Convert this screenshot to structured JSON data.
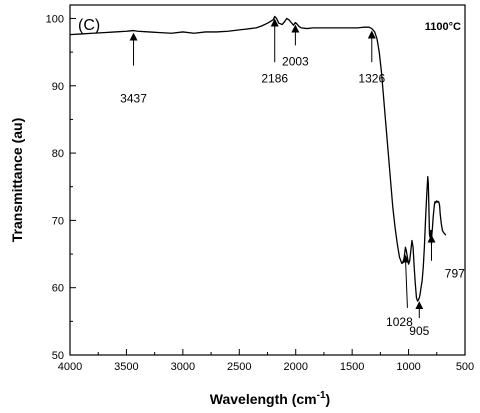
{
  "chart_data": {
    "type": "line",
    "panel_label": "(C)",
    "corner_label": "1100°C",
    "xlabel_main": "Wavelength (cm",
    "xlabel_sup": "-1",
    "xlabel_end": ")",
    "ylabel": "Transmittance (au)",
    "xlim": [
      4000,
      500
    ],
    "ylim": [
      50,
      102
    ],
    "x_ticks": [
      4000,
      3500,
      3000,
      2500,
      2000,
      1500,
      1000,
      500
    ],
    "y_ticks": [
      50,
      60,
      70,
      80,
      90,
      100
    ],
    "grid": false,
    "series": [
      {
        "x": [
          4000,
          3900,
          3800,
          3700,
          3600,
          3500,
          3437,
          3400,
          3300,
          3200,
          3100,
          3000,
          2900,
          2800,
          2700,
          2600,
          2500,
          2450,
          2400,
          2350,
          2300,
          2250,
          2200,
          2186,
          2170,
          2150,
          2120,
          2100,
          2080,
          2060,
          2040,
          2020,
          2003,
          1990,
          1970,
          1950,
          1900,
          1850,
          1800,
          1750,
          1700,
          1650,
          1600,
          1550,
          1500,
          1450,
          1400,
          1350,
          1326,
          1300,
          1280,
          1260,
          1240,
          1220,
          1200,
          1180,
          1160,
          1140,
          1120,
          1100,
          1080,
          1060,
          1045,
          1035,
          1028,
          1020,
          1010,
          1000,
          990,
          980,
          970,
          960,
          950,
          940,
          930,
          920,
          910,
          905,
          898,
          890,
          880,
          870,
          860,
          850,
          840,
          830,
          825,
          820,
          815,
          810,
          805,
          800,
          797,
          793,
          788,
          782,
          776,
          770,
          765,
          760,
          755,
          750,
          745,
          740,
          735,
          730,
          725,
          720,
          710,
          700,
          690,
          680,
          670
        ],
        "y": [
          97.6,
          97.7,
          97.8,
          97.9,
          98.0,
          98.1,
          98.2,
          98.1,
          98.0,
          97.9,
          97.8,
          98.0,
          97.8,
          98.0,
          98.0,
          98.1,
          98.3,
          98.4,
          98.5,
          98.6,
          98.9,
          99.3,
          99.8,
          100.3,
          100.0,
          99.3,
          99.1,
          99.5,
          100.0,
          99.8,
          99.4,
          99.0,
          99.4,
          99.2,
          98.8,
          98.6,
          98.5,
          98.6,
          98.6,
          98.6,
          98.6,
          98.6,
          98.6,
          98.6,
          98.6,
          98.6,
          98.7,
          98.7,
          98.5,
          98.0,
          97.0,
          95.0,
          92.0,
          88.0,
          84.0,
          80.0,
          76.0,
          72.0,
          69.0,
          66.5,
          64.5,
          63.6,
          63.8,
          65.0,
          66.0,
          65.5,
          64.5,
          63.5,
          64.0,
          65.5,
          67.0,
          66.0,
          63.0,
          60.5,
          58.5,
          58.0,
          58.3,
          58.5,
          59.0,
          60.0,
          61.0,
          63.0,
          66.0,
          70.0,
          73.5,
          76.5,
          75.5,
          72.0,
          68.0,
          67.5,
          68.5,
          68.5,
          66.5,
          68.0,
          69.0,
          70.5,
          71.5,
          72.5,
          72.8,
          72.6,
          72.8,
          72.9,
          72.7,
          72.8,
          72.8,
          72.6,
          72.2,
          71.0,
          69.5,
          68.5,
          68.2,
          68.0,
          67.8
        ]
      }
    ],
    "annotations": [
      {
        "label": "3437",
        "x": 3437,
        "y": 98.2
      },
      {
        "label": "2186",
        "x": 2186,
        "y": 100.3
      },
      {
        "label": "2003",
        "x": 2003,
        "y": 99.4
      },
      {
        "label": "1326",
        "x": 1326,
        "y": 98.5
      },
      {
        "label": "1028",
        "x": 1028,
        "y": 65.2
      },
      {
        "label": "905",
        "x": 905,
        "y": 58.3
      },
      {
        "label": "797",
        "x": 797,
        "y": 68.2
      }
    ]
  }
}
